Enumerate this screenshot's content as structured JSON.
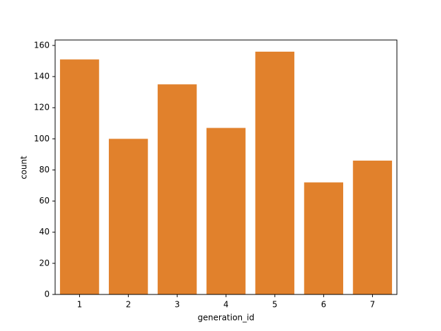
{
  "chart_data": {
    "type": "bar",
    "categories": [
      "1",
      "2",
      "3",
      "4",
      "5",
      "6",
      "7"
    ],
    "values": [
      151,
      100,
      135,
      107,
      156,
      72,
      86
    ],
    "color": "#e1812c",
    "xlabel": "generation_id",
    "ylabel": "count",
    "ylim": [
      0,
      163.5
    ],
    "yticks": [
      0,
      20,
      40,
      60,
      80,
      100,
      120,
      140,
      160
    ],
    "grid": false
  }
}
